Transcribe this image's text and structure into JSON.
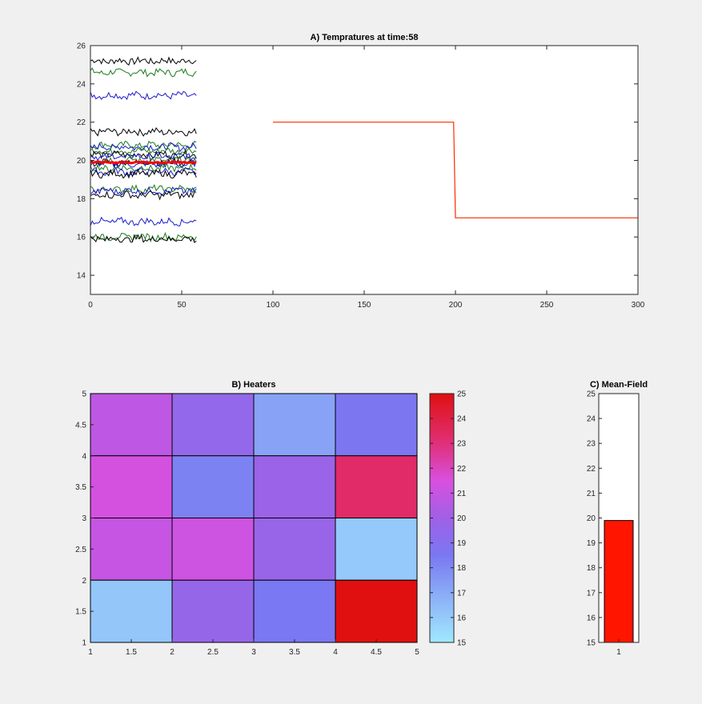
{
  "chart_data": [
    {
      "type": "line",
      "title": "A) Tempratures at time:58",
      "xlim": [
        0,
        300
      ],
      "ylim": [
        13,
        26
      ],
      "xticks": [
        "0",
        "50",
        "100",
        "150",
        "200",
        "250",
        "300"
      ],
      "yticks": [
        "14",
        "16",
        "18",
        "20",
        "22",
        "24",
        "26"
      ],
      "sensor_traces": {
        "x_range": [
          0,
          58
        ],
        "levels": [
          25.2,
          24.6,
          23.4,
          21.5,
          20.8,
          20.7,
          20.5,
          20.3,
          20.2,
          20.0,
          19.9,
          19.8,
          19.6,
          19.4,
          19.3,
          18.5,
          18.4,
          18.2,
          16.8,
          16.0,
          15.9
        ],
        "colors": [
          "#000000",
          "#1a7a1a",
          "#1a1acc",
          "#000000",
          "#1a7a1a",
          "#1a1acc",
          "#1a7a1a",
          "#000000",
          "#1a1acc",
          "#1a7a1a",
          "#000000",
          "#1a1acc",
          "#1a7a1a",
          "#1a1acc",
          "#000000",
          "#1a7a1a",
          "#1a1acc",
          "#000000",
          "#1a1acc",
          "#1a7a1a",
          "#000000"
        ]
      },
      "mean_trace": {
        "x_range": [
          0,
          58
        ],
        "y": 19.9,
        "color": "#ff0000"
      },
      "setpoint": {
        "x": [
          100,
          199,
          200,
          300
        ],
        "y": [
          22,
          22,
          17,
          17
        ],
        "color": "#ff2a00"
      }
    },
    {
      "type": "heatmap",
      "title": "B) Heaters",
      "xlim": [
        1,
        5
      ],
      "ylim": [
        1,
        5
      ],
      "xticks": [
        "1",
        "1.5",
        "2",
        "2.5",
        "3",
        "3.5",
        "4",
        "4.5",
        "5"
      ],
      "yticks": [
        "1",
        "1.5",
        "2",
        "2.5",
        "3",
        "3.5",
        "4",
        "4.5",
        "5"
      ],
      "rows_top_to_bottom": [
        [
          20.8,
          19.5,
          17.2,
          18.6
        ],
        [
          21.4,
          18.2,
          19.8,
          23.3
        ],
        [
          21.0,
          21.2,
          19.7,
          16.0
        ],
        [
          16.1,
          19.6,
          18.5,
          25.0
        ]
      ],
      "clim": [
        15,
        25
      ],
      "colorbar_ticks": [
        "15",
        "16",
        "17",
        "18",
        "19",
        "20",
        "21",
        "22",
        "23",
        "24",
        "25"
      ]
    },
    {
      "type": "bar",
      "title": "C) Mean-Field",
      "categories": [
        "1"
      ],
      "values": [
        19.9
      ],
      "ylim": [
        15,
        25
      ],
      "yticks": [
        "15",
        "16",
        "17",
        "18",
        "19",
        "20",
        "21",
        "22",
        "23",
        "24",
        "25"
      ],
      "color": "#ff1500"
    }
  ]
}
